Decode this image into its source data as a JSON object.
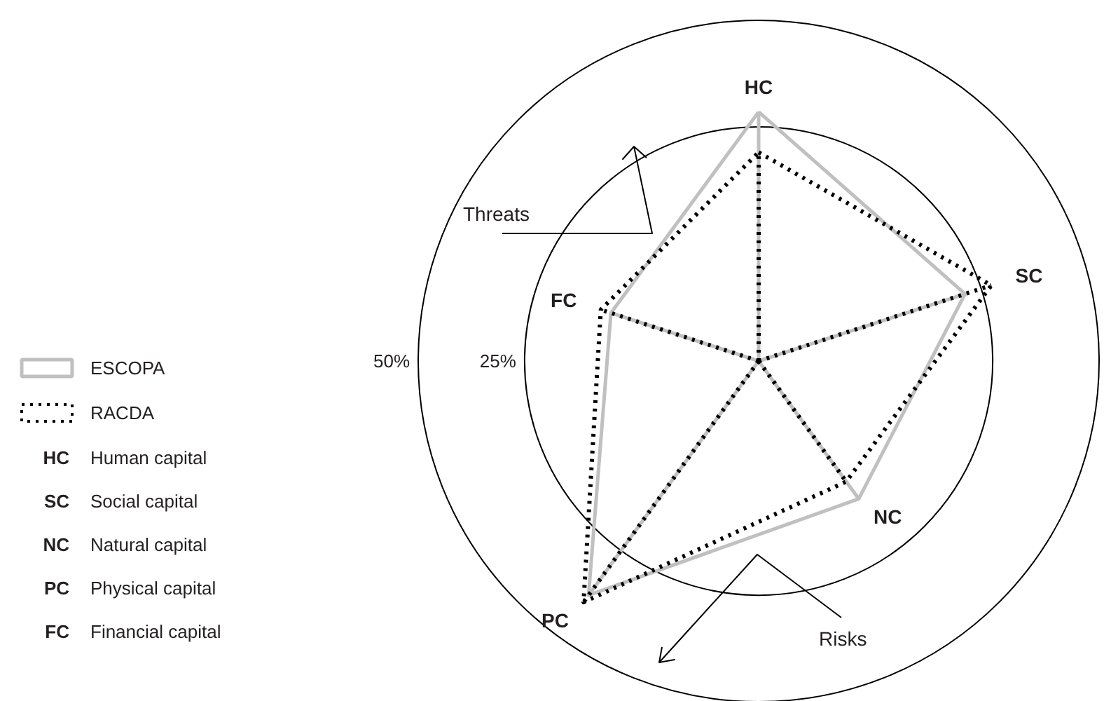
{
  "chart_data": {
    "type": "radar",
    "categories": [
      "HC",
      "SC",
      "NC",
      "PC",
      "FC"
    ],
    "series": [
      {
        "name": "ESCOPA",
        "color": "#c0c0c0",
        "line_style": "solid",
        "values": [
          28.5,
          21,
          10,
          38,
          6.5
        ]
      },
      {
        "name": "RACDA",
        "color": "#000000",
        "line_style": "dotted",
        "values": [
          19,
          27.5,
          5,
          40,
          9
        ]
      }
    ],
    "ylim": [
      -30,
      50
    ],
    "yticks": [
      {
        "value": 25,
        "label": "25%"
      },
      {
        "value": 50,
        "label": "50%"
      }
    ],
    "legend": "left",
    "annotations": [
      "Threats",
      "Risks",
      "Human capital",
      "Social capital",
      "Natural capital",
      "Physical capital",
      "Financial capital"
    ]
  }
}
